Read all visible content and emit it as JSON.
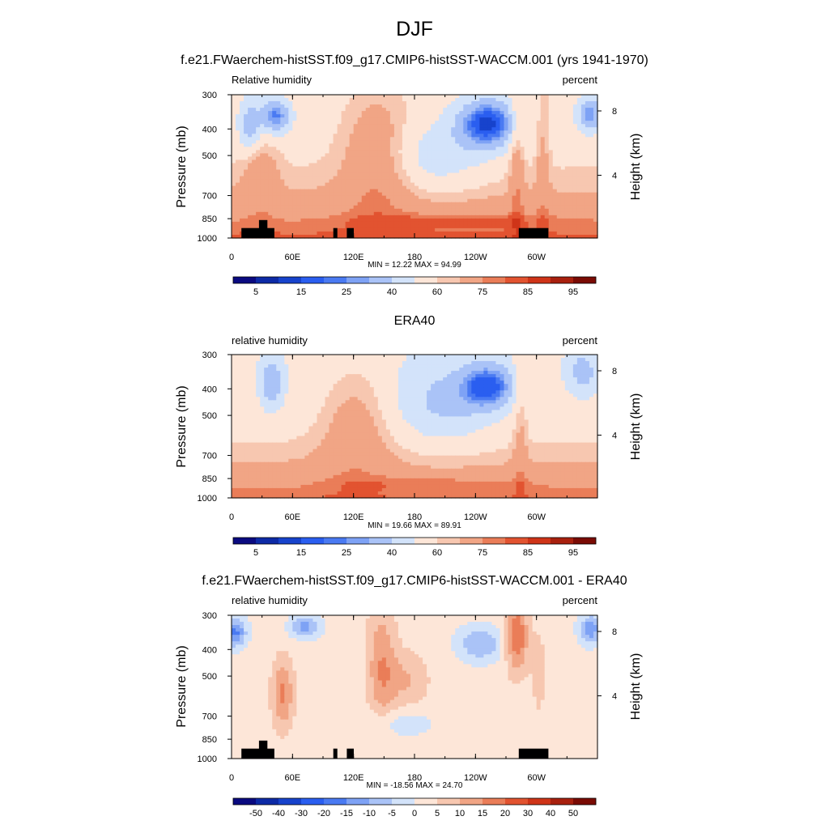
{
  "figure": {
    "title": "DJF"
  },
  "colors": {
    "rh_colorbar": [
      "#0a0a80",
      "#0d2aa6",
      "#1743cc",
      "#2a5ef0",
      "#4a7af2",
      "#7ea2f5",
      "#aac3f7",
      "#d3e3fa",
      "#fde6d8",
      "#f7c7b0",
      "#f1a585",
      "#ea7d58",
      "#e25330",
      "#cf3418",
      "#a8200e",
      "#7a0b04"
    ],
    "diff_colorbar": [
      "#0a0a80",
      "#0d2aa6",
      "#1743cc",
      "#2a5ef0",
      "#4a7af2",
      "#7ea2f5",
      "#aac3f7",
      "#d3e3fa",
      "#fde6d8",
      "#f7c7b0",
      "#f1a585",
      "#ea7d58",
      "#e25330",
      "#cf3418",
      "#a8200e",
      "#7a0b04"
    ],
    "land_mask": "#000000"
  },
  "chart_data": [
    {
      "type": "heatmap",
      "title": "f.e21.FWaerchem-histSST.f09_g17.CMIP6-histSST-WACCM.001 (yrs 1941-1970)",
      "left_label": "Relative humidity",
      "right_label": "percent",
      "ylabel": "Pressure (mb)",
      "right_ylabel": "Height (km)",
      "x_ticks": [
        "0",
        "60E",
        "120E",
        "180",
        "120W",
        "60W"
      ],
      "y_ticks": [
        "300",
        "400",
        "500",
        "700",
        "850",
        "1000"
      ],
      "right_ticks": [
        "8",
        "4"
      ],
      "minmax_text": "MIN =  12.22  MAX =  94.99",
      "min": 12.22,
      "max": 94.99,
      "colorbar_labels": [
        "5",
        "15",
        "25",
        "40",
        "60",
        "75",
        "85",
        "95"
      ]
    },
    {
      "type": "heatmap",
      "title": "ERA40",
      "left_label": "relative humidity",
      "right_label": "percent",
      "ylabel": "Pressure (mb)",
      "right_ylabel": "Height (km)",
      "x_ticks": [
        "0",
        "60E",
        "120E",
        "180",
        "120W",
        "60W"
      ],
      "y_ticks": [
        "300",
        "400",
        "500",
        "700",
        "850",
        "1000"
      ],
      "right_ticks": [
        "8",
        "4"
      ],
      "minmax_text": "MIN =  19.66  MAX =  89.91",
      "min": 19.66,
      "max": 89.91,
      "colorbar_labels": [
        "5",
        "15",
        "25",
        "40",
        "60",
        "75",
        "85",
        "95"
      ]
    },
    {
      "type": "heatmap",
      "title": "f.e21.FWaerchem-histSST.f09_g17.CMIP6-histSST-WACCM.001 - ERA40",
      "left_label": "relative humidity",
      "right_label": "percent",
      "ylabel": "Pressure (mb)",
      "right_ylabel": "Height (km)",
      "x_ticks": [
        "0",
        "60E",
        "120E",
        "180",
        "120W",
        "60W"
      ],
      "y_ticks": [
        "300",
        "400",
        "500",
        "700",
        "850",
        "1000"
      ],
      "right_ticks": [
        "8",
        "4"
      ],
      "minmax_text": "MIN = -18.56  MAX =  24.70",
      "min": -18.56,
      "max": 24.7,
      "colorbar_labels": [
        "-50",
        "-40",
        "-30",
        "-20",
        "-15",
        "-10",
        "-5",
        "0",
        "5",
        "10",
        "15",
        "20",
        "30",
        "40",
        "50"
      ]
    }
  ]
}
